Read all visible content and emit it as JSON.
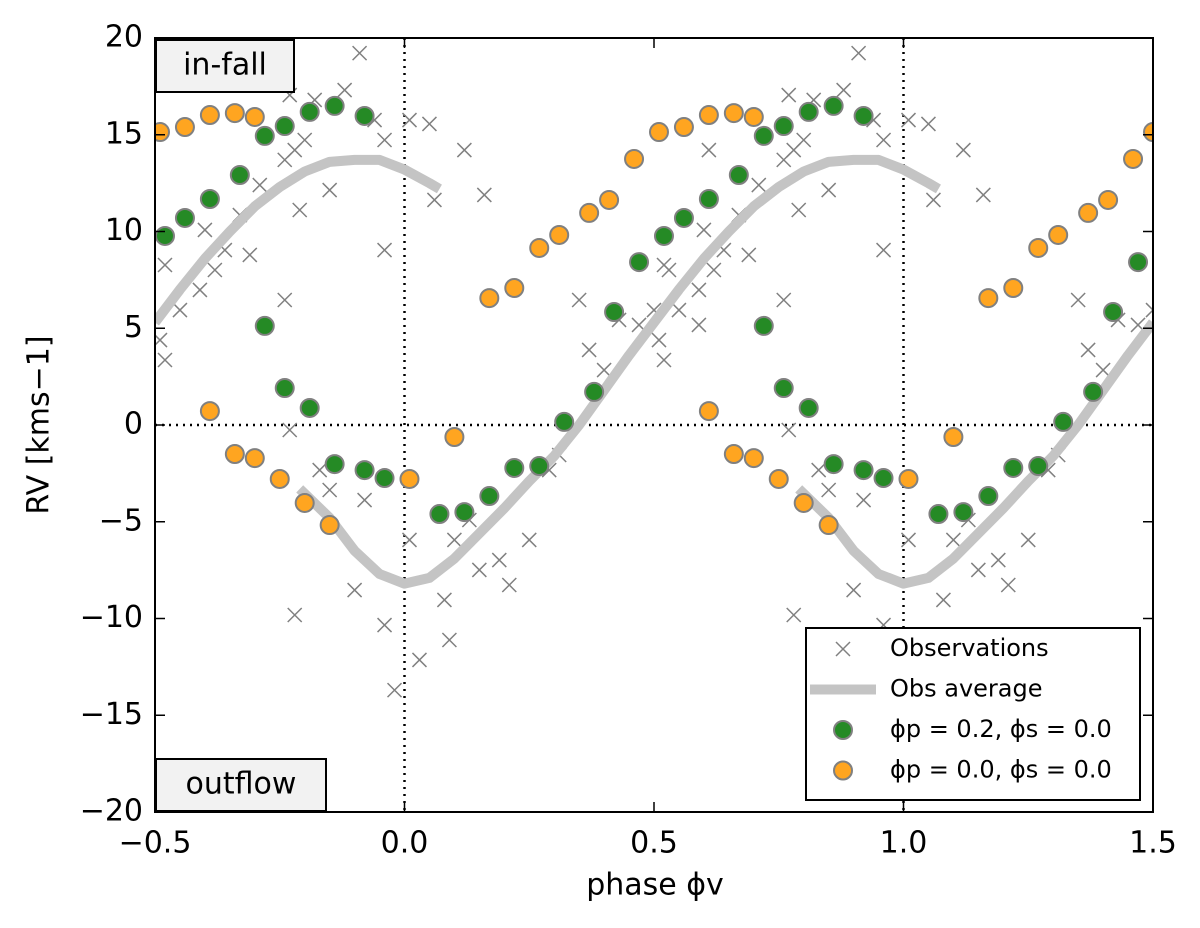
{
  "chart_data": {
    "type": "scatter",
    "x_label": "phase ϕv",
    "y_label": "RV [kms−1]",
    "xlim": [
      -0.5,
      1.5
    ],
    "ylim": [
      -20,
      20
    ],
    "xticks": [
      {
        "value": -0.5,
        "label": "−0.5"
      },
      {
        "value": 0,
        "label": "0.0"
      },
      0.5,
      {
        "value": 1,
        "label": "1.0"
      },
      1.5
    ],
    "yticks": [
      {
        "value": -20,
        "label": "−20"
      },
      {
        "value": -15,
        "label": "−15"
      },
      {
        "value": -10,
        "label": "−10"
      },
      {
        "value": -5,
        "label": "−5"
      },
      0,
      5,
      10,
      15,
      20
    ],
    "vlines": [
      0,
      1
    ],
    "hlines": [
      0
    ],
    "legend": "lower right",
    "annotations": [
      {
        "text": "in-fall",
        "color": "#e00000"
      },
      {
        "text": "outflow",
        "color": "#4a8ad0"
      }
    ],
    "series": [
      {
        "name": "Observations",
        "marker": "x",
        "color": "#808080",
        "x": [
          -0.49,
          -0.48,
          -0.48,
          -0.45,
          -0.41,
          -0.4,
          -0.38,
          -0.36,
          -0.33,
          -0.31,
          -0.29,
          -0.24,
          -0.24,
          -0.23,
          -0.22,
          -0.21,
          -0.2,
          -0.18,
          -0.15,
          -0.12,
          -0.09,
          -0.06,
          -0.04,
          -0.23,
          -0.17,
          -0.15,
          -0.22,
          -0.1,
          -0.08,
          -0.04,
          -0.02,
          -0.04,
          0.01,
          0.01,
          0.03,
          0.05,
          0.06,
          0.08,
          0.1,
          0.09,
          0.12,
          0.13,
          0.15,
          0.16,
          0.19,
          0.21,
          0.25,
          0.29,
          0.31,
          0.35,
          0.37,
          0.4,
          0.43,
          0.47,
          0.5,
          0.53,
          0.59,
          0.61,
          0.51,
          0.52,
          0.52,
          0.55,
          0.59,
          0.6,
          0.62,
          0.64,
          0.67,
          0.69,
          0.71,
          0.76,
          0.76,
          0.77,
          0.78,
          0.79,
          0.8,
          0.82,
          0.85,
          0.88,
          0.91,
          0.94,
          0.96,
          0.77,
          0.83,
          0.85,
          0.78,
          0.9,
          0.92,
          0.96,
          0.98,
          0.96,
          1.01,
          1.01,
          1.03,
          1.05,
          1.06,
          1.08,
          1.1,
          1.09,
          1.12,
          1.13,
          1.15,
          1.16,
          1.19,
          1.21,
          1.25,
          1.29,
          1.31,
          1.35,
          1.37,
          1.4,
          1.43,
          1.47,
          1.5
        ],
        "values": [
          4.39,
          8.27,
          3.36,
          5.94,
          6.98,
          10.08,
          8.01,
          9.04,
          10.85,
          8.79,
          12.4,
          6.46,
          13.7,
          17.05,
          14.21,
          11.11,
          14.73,
          16.8,
          12.14,
          17.31,
          19.22,
          15.76,
          14.73,
          -0.26,
          -2.33,
          -3.36,
          -9.82,
          -8.53,
          -3.88,
          -10.34,
          -13.7,
          9.04,
          15.76,
          -5.94,
          -12.14,
          15.56,
          11.63,
          -9.04,
          -5.94,
          -11.11,
          14.21,
          -4.91,
          -7.49,
          11.89,
          -6.98,
          -8.27,
          -5.94,
          -2.33,
          -1.55,
          6.46,
          3.88,
          2.84,
          5.43,
          5.17,
          5.94,
          8.01,
          5.17,
          14.21,
          4.39,
          8.27,
          3.36,
          5.94,
          6.98,
          10.08,
          8.01,
          9.04,
          10.85,
          8.79,
          12.4,
          6.46,
          13.7,
          17.05,
          14.21,
          11.11,
          14.73,
          16.8,
          12.14,
          17.31,
          19.22,
          15.76,
          14.73,
          -0.26,
          -2.33,
          -3.36,
          -9.82,
          -8.53,
          -3.88,
          -10.34,
          -13.7,
          9.04,
          15.76,
          -5.94,
          -12.14,
          15.56,
          11.63,
          -9.04,
          -5.94,
          -11.11,
          14.21,
          -4.91,
          -7.49,
          11.89,
          -6.98,
          -8.27,
          -5.94,
          -2.33,
          -1.55,
          6.46,
          3.88,
          2.84,
          5.43,
          5.17,
          5.94
        ]
      },
      {
        "name": "Obs average",
        "marker": "line",
        "color": "#c4c4c4",
        "x": [
          -0.5,
          -0.45,
          -0.4,
          -0.35,
          -0.3,
          -0.25,
          -0.2,
          -0.15,
          -0.1,
          -0.05,
          0,
          0.05,
          0.07,
          null,
          -0.21,
          -0.15,
          -0.1,
          -0.05,
          0,
          0.05,
          0.1,
          0.15,
          0.2,
          0.25,
          0.3,
          0.35,
          0.4,
          0.45,
          0.5,
          0.55,
          0.6,
          0.65,
          0.7,
          0.75,
          0.8,
          0.85,
          0.9,
          0.95,
          1.0,
          1.05,
          1.07,
          null,
          0.79,
          0.85,
          0.9,
          0.95,
          1.0,
          1.05,
          1.1,
          1.15,
          1.2,
          1.25,
          1.3,
          1.35,
          1.4,
          1.45,
          1.5
        ],
        "values": [
          5.3,
          7.0,
          8.6,
          10.0,
          11.3,
          12.3,
          13.1,
          13.6,
          13.7,
          13.7,
          13.2,
          12.5,
          12.2,
          null,
          -3.3,
          -4.8,
          -6.5,
          -7.7,
          -8.2,
          -7.9,
          -6.9,
          -5.6,
          -4.3,
          -2.9,
          -1.6,
          0.0,
          1.8,
          3.6,
          5.3,
          7.0,
          8.6,
          10.0,
          11.3,
          12.3,
          13.1,
          13.6,
          13.7,
          13.7,
          13.2,
          12.5,
          12.2,
          null,
          -3.3,
          -4.8,
          -6.5,
          -7.7,
          -8.2,
          -7.9,
          -6.9,
          -5.6,
          -4.3,
          -2.9,
          -1.6,
          0.0,
          1.8,
          3.6,
          5.3
        ]
      },
      {
        "name": "ϕp = 0.2, ϕs = 0.0",
        "marker": "o",
        "color": "#258a25",
        "x": [
          -0.48,
          -0.44,
          -0.39,
          -0.33,
          -0.28,
          -0.28,
          -0.24,
          -0.24,
          -0.19,
          -0.19,
          -0.14,
          -0.14,
          -0.08,
          -0.08,
          -0.04,
          0.07,
          0.12,
          0.17,
          0.22,
          0.27,
          0.32,
          0.38,
          0.42,
          0.47,
          0.52,
          0.56,
          0.61,
          0.67,
          0.72,
          0.72,
          0.76,
          0.76,
          0.81,
          0.81,
          0.86,
          0.86,
          0.92,
          0.92,
          0.96,
          1.07,
          1.12,
          1.17,
          1.22,
          1.27,
          1.32,
          1.38,
          1.42,
          1.47
        ],
        "values": [
          9.77,
          10.7,
          11.68,
          12.92,
          5.12,
          14.94,
          15.45,
          1.91,
          16.18,
          0.88,
          16.49,
          -2.02,
          15.97,
          -2.33,
          -2.74,
          -4.6,
          -4.5,
          -3.67,
          -2.22,
          -2.12,
          0.16,
          1.71,
          5.84,
          8.42,
          9.77,
          10.7,
          11.68,
          12.92,
          5.12,
          14.94,
          15.45,
          1.91,
          16.18,
          0.88,
          16.49,
          -2.02,
          15.97,
          -2.33,
          -2.74,
          -4.6,
          -4.5,
          -3.67,
          -2.22,
          -2.12,
          0.16,
          1.71,
          5.84,
          8.42
        ]
      },
      {
        "name": "ϕp = 0.0, ϕs = 0.0",
        "marker": "o",
        "color": "#ffa520",
        "x": [
          -0.49,
          -0.44,
          -0.39,
          -0.34,
          -0.3,
          -0.39,
          -0.34,
          -0.3,
          -0.25,
          -0.2,
          -0.15,
          0.01,
          0.1,
          0.17,
          0.22,
          0.27,
          0.31,
          0.37,
          0.41,
          0.46,
          0.51,
          0.56,
          0.61,
          0.66,
          0.7,
          0.61,
          0.66,
          0.7,
          0.75,
          0.8,
          0.85,
          1.01,
          1.1,
          1.17,
          1.22,
          1.27,
          1.31,
          1.37,
          1.41,
          1.46,
          1.5
        ],
        "values": [
          15.14,
          15.4,
          16.02,
          16.12,
          15.92,
          0.72,
          -1.5,
          -1.71,
          -2.79,
          -4.03,
          -5.17,
          -2.79,
          -0.62,
          6.56,
          7.08,
          9.15,
          9.82,
          10.96,
          11.63,
          13.75,
          15.14,
          15.4,
          16.02,
          16.12,
          15.92,
          0.72,
          -1.5,
          -1.71,
          -2.79,
          -4.03,
          -5.17,
          -2.79,
          -0.62,
          6.56,
          7.08,
          9.15,
          9.82,
          10.96,
          11.63,
          13.75,
          15.14
        ]
      }
    ]
  }
}
